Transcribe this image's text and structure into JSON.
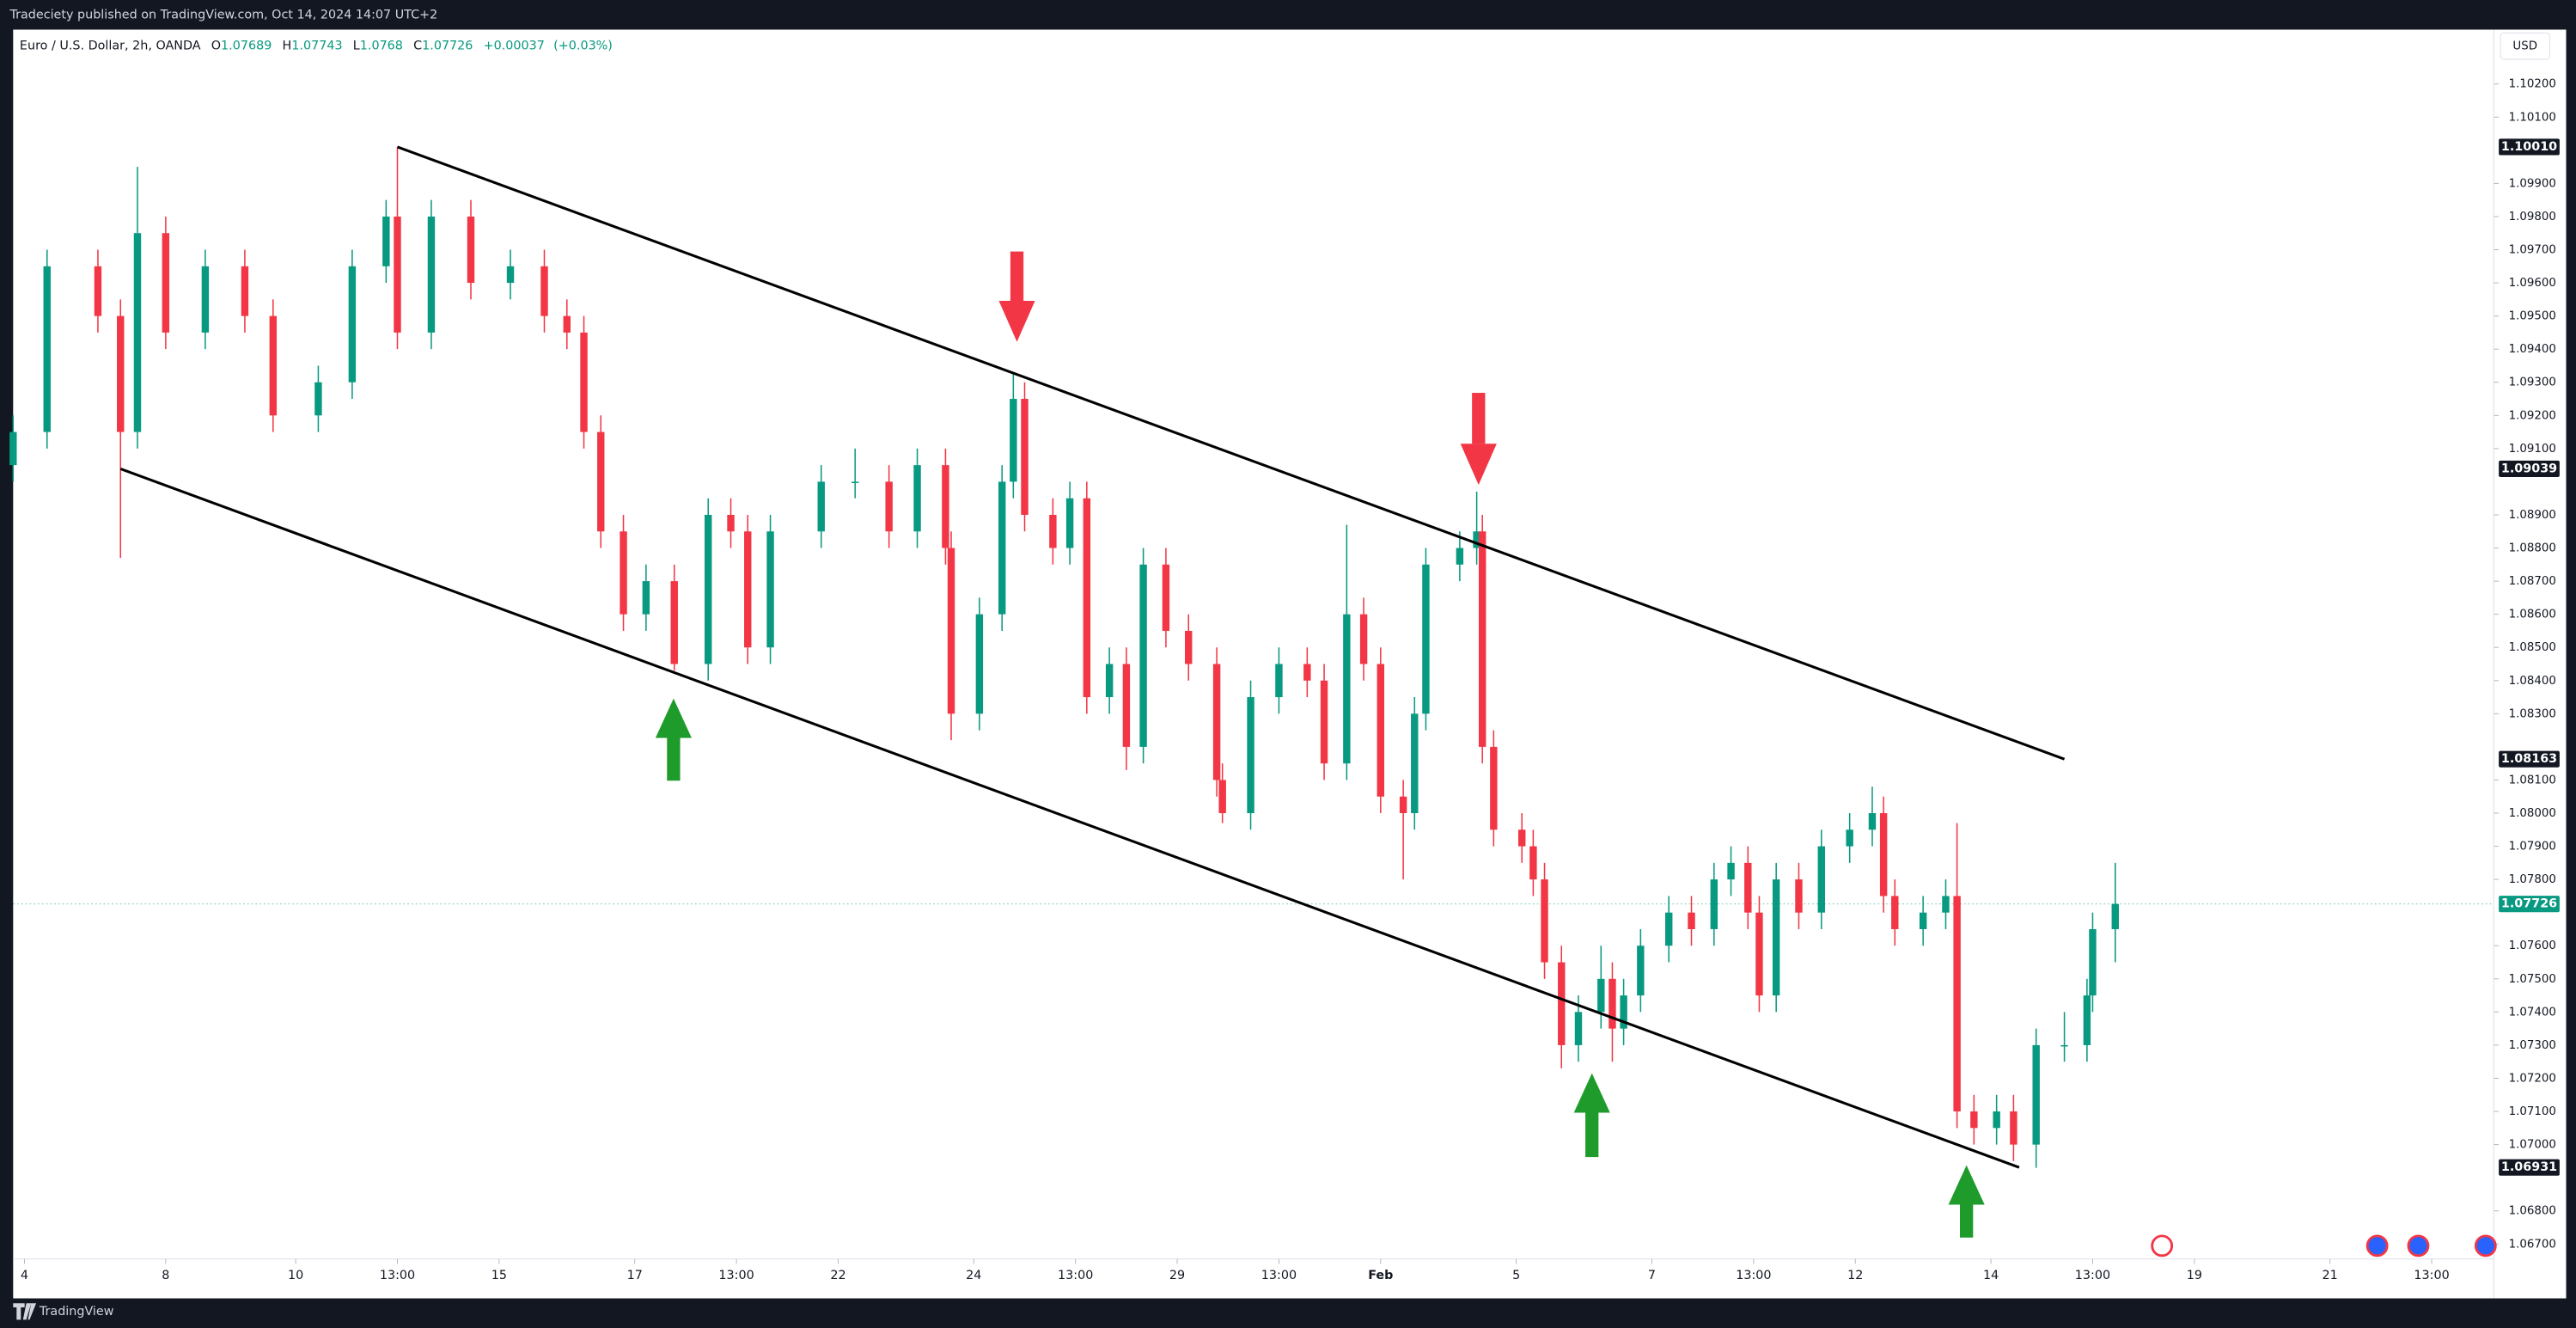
{
  "header": {
    "published": "Tradeciety published on TradingView.com, Oct 14, 2024 14:07 UTC+2",
    "footer": "TradingView"
  },
  "chart_data": {
    "type": "candlestick",
    "symbol": "Euro / U.S. Dollar, 2h, OANDA",
    "legend": {
      "open_label": "O",
      "open": 1.07689,
      "high_label": "H",
      "high": 1.07743,
      "low_label": "L",
      "low": 1.0768,
      "close_label": "C",
      "close": 1.07726,
      "change": {
        "value": 0.00037,
        "label": "+0.00037"
      },
      "change_pct": {
        "value": 0.03,
        "label": "(+0.03%)"
      }
    },
    "currency": "USD",
    "up_color": "#089981",
    "down_color": "#f23645",
    "x": [
      0,
      6,
      15,
      19,
      22,
      27,
      34,
      41,
      46,
      54,
      60,
      66,
      68,
      74,
      81,
      88,
      94,
      98,
      101,
      104,
      108,
      112,
      117,
      123,
      127,
      130,
      134,
      143,
      149,
      155,
      160,
      165,
      166,
      171,
      175,
      177,
      179,
      184,
      187,
      190,
      194,
      197,
      200,
      204,
      208,
      213,
      214,
      219,
      224,
      229,
      232,
      236,
      239,
      242,
      246,
      248,
      250,
      256,
      259,
      260,
      262,
      267,
      269,
      271,
      274,
      277,
      281,
      283,
      285,
      288,
      293,
      297,
      301,
      304,
      307,
      309,
      312,
      316,
      320,
      325,
      329,
      331,
      333,
      338,
      342,
      344,
      347,
      351,
      354,
      358,
      363,
      367,
      368,
      372
    ],
    "open": [
      1.0905,
      1.0915,
      1.0965,
      1.095,
      1.0915,
      1.0975,
      1.0945,
      1.0965,
      1.095,
      1.092,
      1.093,
      1.0965,
      1.098,
      1.0945,
      1.098,
      1.096,
      1.0965,
      1.095,
      1.0945,
      1.0915,
      1.0885,
      1.086,
      1.087,
      1.0845,
      1.089,
      1.0885,
      1.085,
      1.0885,
      1.09,
      1.09,
      1.0885,
      1.0905,
      1.088,
      1.083,
      1.086,
      1.09,
      1.0925,
      1.089,
      1.088,
      1.0895,
      1.0835,
      1.0845,
      1.082,
      1.0875,
      1.0855,
      1.0845,
      1.081,
      1.08,
      1.0835,
      1.0845,
      1.084,
      1.0815,
      1.086,
      1.0845,
      1.0805,
      1.08,
      1.083,
      1.0875,
      1.088,
      1.0885,
      1.082,
      1.0795,
      1.079,
      1.078,
      1.0755,
      1.073,
      1.074,
      1.075,
      1.0735,
      1.0745,
      1.076,
      1.077,
      1.0765,
      1.078,
      1.0785,
      1.077,
      1.0745,
      1.078,
      1.077,
      1.079,
      1.0795,
      1.08,
      1.0775,
      1.0765,
      1.077,
      1.0775,
      1.071,
      1.0705,
      1.071,
      1.07,
      1.073,
      1.073,
      1.0745,
      1.0765
    ],
    "high": [
      1.092,
      1.097,
      1.097,
      1.0955,
      1.0995,
      1.098,
      1.097,
      1.097,
      1.0955,
      1.0935,
      1.097,
      1.0985,
      1.1001,
      1.0985,
      1.0985,
      1.097,
      1.097,
      1.0955,
      1.095,
      1.092,
      1.089,
      1.0875,
      1.0875,
      1.0895,
      1.0895,
      1.089,
      1.089,
      1.0905,
      1.091,
      1.0905,
      1.091,
      1.091,
      1.0885,
      1.0865,
      1.0905,
      1.0933,
      1.093,
      1.0895,
      1.09,
      1.09,
      1.085,
      1.085,
      1.088,
      1.088,
      1.086,
      1.085,
      1.0815,
      1.084,
      1.085,
      1.085,
      1.0845,
      1.0887,
      1.0865,
      1.085,
      1.081,
      1.0835,
      1.088,
      1.0885,
      1.0897,
      1.089,
      1.0825,
      1.08,
      1.0795,
      1.0785,
      1.076,
      1.0745,
      1.076,
      1.0755,
      1.075,
      1.0765,
      1.0775,
      1.0775,
      1.0785,
      1.079,
      1.079,
      1.0775,
      1.0785,
      1.0785,
      1.0795,
      1.08,
      1.0808,
      1.0805,
      1.078,
      1.0775,
      1.078,
      1.0797,
      1.0715,
      1.0715,
      1.0715,
      1.0735,
      1.074,
      1.075,
      1.077,
      1.0785
    ],
    "low": [
      1.09,
      1.091,
      1.0945,
      1.0877,
      1.091,
      1.094,
      1.094,
      1.0945,
      1.0915,
      1.0915,
      1.0925,
      1.096,
      1.094,
      1.094,
      1.0955,
      1.0955,
      1.0945,
      1.094,
      1.091,
      1.088,
      1.0855,
      1.0855,
      1.0843,
      1.084,
      1.088,
      1.0845,
      1.0845,
      1.088,
      1.0895,
      1.088,
      1.088,
      1.0875,
      1.0822,
      1.0825,
      1.0855,
      1.0895,
      1.0885,
      1.0875,
      1.0875,
      1.083,
      1.083,
      1.0813,
      1.0815,
      1.085,
      1.084,
      1.0805,
      1.0797,
      1.0795,
      1.083,
      1.0835,
      1.081,
      1.081,
      1.084,
      1.08,
      1.078,
      1.0795,
      1.0825,
      1.087,
      1.0875,
      1.0815,
      1.079,
      1.0785,
      1.0775,
      1.075,
      1.0723,
      1.0725,
      1.0735,
      1.0725,
      1.073,
      1.074,
      1.0755,
      1.076,
      1.076,
      1.0775,
      1.0765,
      1.074,
      1.074,
      1.0765,
      1.0765,
      1.0785,
      1.079,
      1.077,
      1.076,
      1.076,
      1.0765,
      1.0705,
      1.07,
      1.07,
      1.0695,
      1.0693,
      1.0725,
      1.0725,
      1.074,
      1.0755
    ],
    "close": [
      1.0915,
      1.0965,
      1.095,
      1.0915,
      1.0975,
      1.0945,
      1.0965,
      1.095,
      1.092,
      1.093,
      1.0965,
      1.098,
      1.0945,
      1.098,
      1.096,
      1.0965,
      1.095,
      1.0945,
      1.0915,
      1.0885,
      1.086,
      1.087,
      1.0845,
      1.089,
      1.0885,
      1.085,
      1.0885,
      1.09,
      1.09,
      1.0885,
      1.0905,
      1.088,
      1.083,
      1.086,
      1.09,
      1.0925,
      1.089,
      1.088,
      1.0895,
      1.0835,
      1.0845,
      1.082,
      1.0875,
      1.0855,
      1.0845,
      1.081,
      1.08,
      1.0835,
      1.0845,
      1.084,
      1.0815,
      1.086,
      1.0845,
      1.0805,
      1.08,
      1.083,
      1.0875,
      1.088,
      1.0885,
      1.082,
      1.0795,
      1.079,
      1.078,
      1.0755,
      1.073,
      1.074,
      1.075,
      1.0735,
      1.0745,
      1.076,
      1.077,
      1.0765,
      1.078,
      1.0785,
      1.077,
      1.0745,
      1.078,
      1.077,
      1.079,
      1.0795,
      1.08,
      1.0775,
      1.0765,
      1.077,
      1.0775,
      1.071,
      1.0705,
      1.071,
      1.07,
      1.073,
      1.073,
      1.0745,
      1.0765,
      1.07726
    ],
    "trendlines": [
      {
        "x": [
          68,
          363
        ],
        "y": [
          1.1001,
          1.08163
        ],
        "value_labels": [
          "1.10010",
          "1.08163"
        ]
      },
      {
        "x": [
          19,
          355
        ],
        "y": [
          1.09039,
          1.06931
        ],
        "value_labels": [
          "1.09039",
          "1.06931"
        ]
      }
    ],
    "last_price": {
      "value": 1.07726,
      "label": "1.07726"
    },
    "xlim": [
      0,
      439
    ],
    "ylim": [
      1.06655,
      1.10364
    ],
    "xticks": [
      {
        "value": 2,
        "label": "4"
      },
      {
        "value": 27,
        "label": "8"
      },
      {
        "value": 50,
        "label": "10"
      },
      {
        "value": 68,
        "label": "13:00"
      },
      {
        "value": 86,
        "label": "15"
      },
      {
        "value": 110,
        "label": "17"
      },
      {
        "value": 128,
        "label": "13:00"
      },
      {
        "value": 146,
        "label": "22"
      },
      {
        "value": 170,
        "label": "24"
      },
      {
        "value": 188,
        "label": "13:00"
      },
      {
        "value": 206,
        "label": "29"
      },
      {
        "value": 224,
        "label": "13:00"
      },
      {
        "value": 242,
        "label": "Feb"
      },
      {
        "value": 266,
        "label": "5"
      },
      {
        "value": 290,
        "label": "7"
      },
      {
        "value": 308,
        "label": "13:00"
      },
      {
        "value": 326,
        "label": "12"
      },
      {
        "value": 350,
        "label": "14"
      },
      {
        "value": 368,
        "label": "13:00"
      },
      {
        "value": 386,
        "label": "19"
      },
      {
        "value": 410,
        "label": "21"
      },
      {
        "value": 428,
        "label": "13:00"
      }
    ],
    "yticks": [
      {
        "value": 1.102,
        "label": "1.10200"
      },
      {
        "value": 1.101,
        "label": "1.10100"
      },
      {
        "value": 1.099,
        "label": "1.09900"
      },
      {
        "value": 1.098,
        "label": "1.09800"
      },
      {
        "value": 1.097,
        "label": "1.09700"
      },
      {
        "value": 1.096,
        "label": "1.09600"
      },
      {
        "value": 1.095,
        "label": "1.09500"
      },
      {
        "value": 1.094,
        "label": "1.09400"
      },
      {
        "value": 1.093,
        "label": "1.09300"
      },
      {
        "value": 1.092,
        "label": "1.09200"
      },
      {
        "value": 1.091,
        "label": "1.09100"
      },
      {
        "value": 1.089,
        "label": "1.08900"
      },
      {
        "value": 1.088,
        "label": "1.08800"
      },
      {
        "value": 1.087,
        "label": "1.08700"
      },
      {
        "value": 1.086,
        "label": "1.08600"
      },
      {
        "value": 1.085,
        "label": "1.08500"
      },
      {
        "value": 1.084,
        "label": "1.08400"
      },
      {
        "value": 1.083,
        "label": "1.08300"
      },
      {
        "value": 1.081,
        "label": "1.08100"
      },
      {
        "value": 1.08,
        "label": "1.08000"
      },
      {
        "value": 1.079,
        "label": "1.07900"
      },
      {
        "value": 1.078,
        "label": "1.07800"
      },
      {
        "value": 1.076,
        "label": "1.07600"
      },
      {
        "value": 1.075,
        "label": "1.07500"
      },
      {
        "value": 1.074,
        "label": "1.07400"
      },
      {
        "value": 1.073,
        "label": "1.07300"
      },
      {
        "value": 1.072,
        "label": "1.07200"
      },
      {
        "value": 1.071,
        "label": "1.07100"
      },
      {
        "value": 1.07,
        "label": "1.07000"
      },
      {
        "value": 1.068,
        "label": "1.06800"
      },
      {
        "value": 1.067,
        "label": "1.06700"
      }
    ],
    "grid": false
  }
}
